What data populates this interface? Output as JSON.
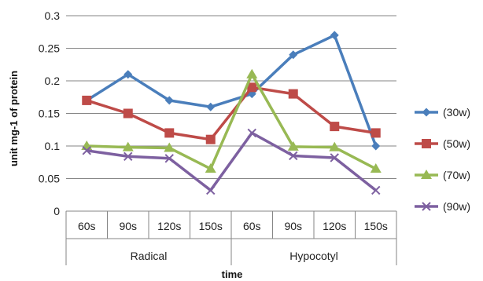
{
  "chart_data": {
    "type": "line",
    "title": "",
    "xlabel": "time",
    "ylabel": "unit mg-1 of protein",
    "ylim": [
      0,
      0.3
    ],
    "yticks": [
      "0",
      "0.05",
      "0.1",
      "0.15",
      "0.2",
      "0.25",
      "0.3"
    ],
    "grid": "horizontal",
    "legend_position": "right",
    "categories": [
      "60s",
      "90s",
      "120s",
      "150s",
      "60s",
      "90s",
      "120s",
      "150s"
    ],
    "groups": [
      {
        "label": "Radical",
        "span": [
          0,
          3
        ]
      },
      {
        "label": "Hypocotyl",
        "span": [
          4,
          7
        ]
      }
    ],
    "series": [
      {
        "name": "(30w)",
        "color": "#4a7ebb",
        "marker": "diamond",
        "values": [
          0.17,
          0.21,
          0.17,
          0.16,
          0.18,
          0.24,
          0.27,
          0.1
        ]
      },
      {
        "name": "(50w)",
        "color": "#be4b48",
        "marker": "square",
        "values": [
          0.17,
          0.15,
          0.12,
          0.11,
          0.19,
          0.18,
          0.13,
          0.12
        ]
      },
      {
        "name": "(70w)",
        "color": "#98b954",
        "marker": "triangle",
        "values": [
          0.1,
          0.098,
          0.097,
          0.065,
          0.21,
          0.099,
          0.098,
          0.065
        ]
      },
      {
        "name": "(90w)",
        "color": "#7d60a0",
        "marker": "x",
        "values": [
          0.093,
          0.084,
          0.081,
          0.032,
          0.12,
          0.085,
          0.082,
          0.032
        ]
      }
    ]
  }
}
